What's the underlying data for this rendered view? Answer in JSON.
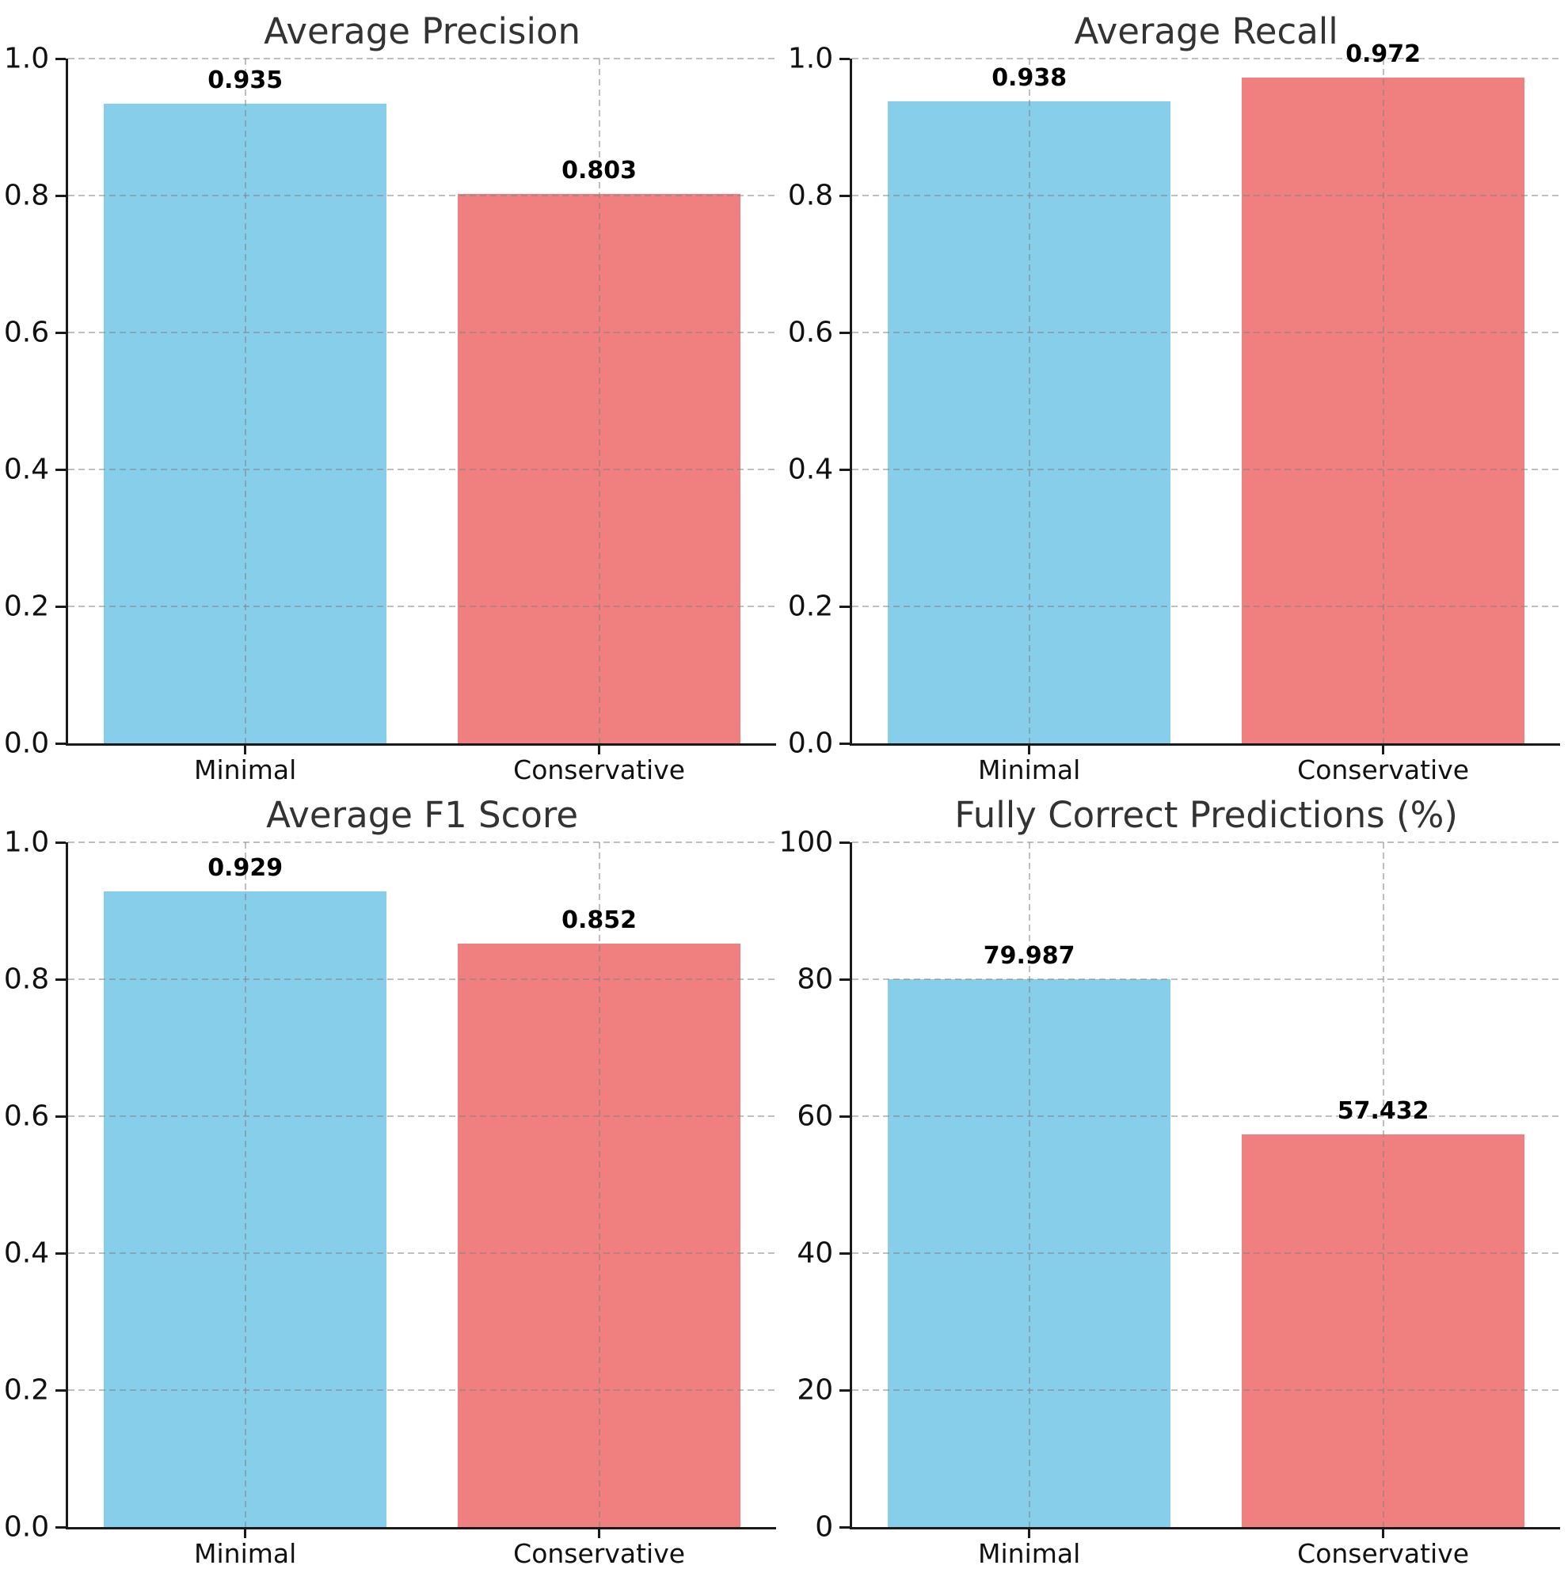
{
  "page": {
    "background": "#ffffff"
  },
  "colors": {
    "bar_minimal": "#87CEEB",
    "bar_conservative": "#F08080",
    "grid": "#b0b0b0",
    "spine": "#1a1a1a",
    "title_text": "#333333",
    "tick_text": "#111111",
    "value_text": "#000000"
  },
  "chart_data": [
    {
      "type": "bar",
      "title": "Average Precision",
      "categories": [
        "Minimal",
        "Conservative"
      ],
      "values": [
        0.935,
        0.803
      ],
      "value_labels": [
        "0.935",
        "0.803"
      ],
      "ylim": [
        0,
        1.0
      ],
      "yticks": [
        0,
        0.2,
        0.4,
        0.6,
        0.8,
        1.0
      ],
      "ytick_labels": [
        "0.0",
        "0.2",
        "0.4",
        "0.6",
        "0.8",
        "1.0"
      ],
      "bar_colors": [
        "#87CEEB",
        "#F08080"
      ],
      "grid": "dashed",
      "legend": "none"
    },
    {
      "type": "bar",
      "title": "Average Recall",
      "categories": [
        "Minimal",
        "Conservative"
      ],
      "values": [
        0.938,
        0.972
      ],
      "value_labels": [
        "0.938",
        "0.972"
      ],
      "ylim": [
        0,
        1.0
      ],
      "yticks": [
        0,
        0.2,
        0.4,
        0.6,
        0.8,
        1.0
      ],
      "ytick_labels": [
        "0.0",
        "0.2",
        "0.4",
        "0.6",
        "0.8",
        "1.0"
      ],
      "bar_colors": [
        "#87CEEB",
        "#F08080"
      ],
      "grid": "dashed",
      "legend": "none"
    },
    {
      "type": "bar",
      "title": "Average F1 Score",
      "categories": [
        "Minimal",
        "Conservative"
      ],
      "values": [
        0.929,
        0.852
      ],
      "value_labels": [
        "0.929",
        "0.852"
      ],
      "ylim": [
        0,
        1.0
      ],
      "yticks": [
        0,
        0.2,
        0.4,
        0.6,
        0.8,
        1.0
      ],
      "ytick_labels": [
        "0.0",
        "0.2",
        "0.4",
        "0.6",
        "0.8",
        "1.0"
      ],
      "bar_colors": [
        "#87CEEB",
        "#F08080"
      ],
      "grid": "dashed",
      "legend": "none"
    },
    {
      "type": "bar",
      "title": "Fully Correct Predictions (%)",
      "categories": [
        "Minimal",
        "Conservative"
      ],
      "values": [
        79.987,
        57.432
      ],
      "value_labels": [
        "79.987",
        "57.432"
      ],
      "ylim": [
        0,
        100
      ],
      "yticks": [
        0,
        20,
        40,
        60,
        80,
        100
      ],
      "ytick_labels": [
        "0",
        "20",
        "40",
        "60",
        "80",
        "100"
      ],
      "bar_colors": [
        "#87CEEB",
        "#F08080"
      ],
      "grid": "dashed",
      "legend": "none"
    }
  ]
}
